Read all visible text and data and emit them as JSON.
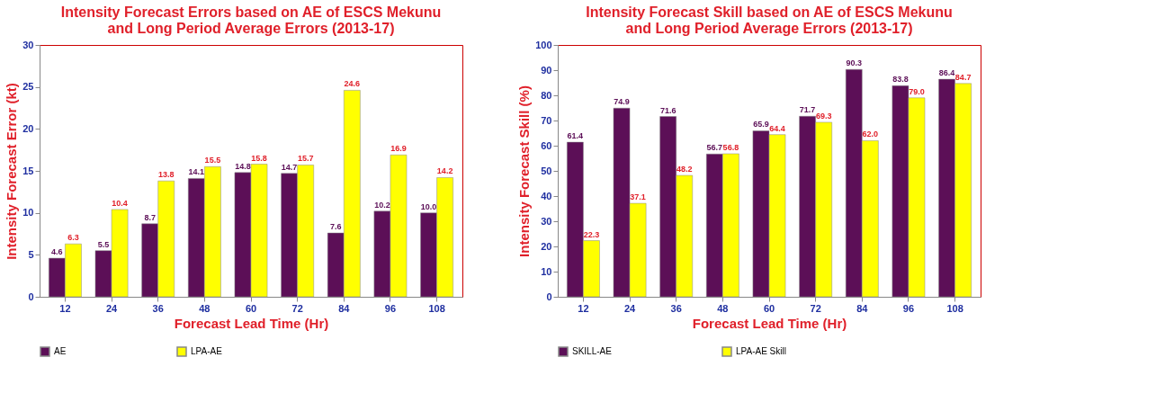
{
  "chart_data": [
    {
      "type": "bar",
      "title": [
        "Intensity Forecast Errors based on AE of  ESCS Mekunu",
        "and Long Period Average Errors (2013-17)"
      ],
      "xlabel": "Forecast Lead Time (Hr)",
      "ylabel": "Intensity Forecast Error  (kt)",
      "categories": [
        "12",
        "24",
        "36",
        "48",
        "60",
        "72",
        "84",
        "96",
        "108"
      ],
      "series": [
        {
          "name": "AE",
          "color": "#5c0f57",
          "values": [
            4.6,
            5.5,
            8.7,
            14.1,
            14.8,
            14.7,
            7.6,
            10.2,
            10.0
          ],
          "value_labels": [
            "4.6",
            "5.5",
            "8.7",
            "14.1",
            "14.8",
            "14.7",
            "7.6",
            "10.2",
            "10.0"
          ]
        },
        {
          "name": "LPA-AE",
          "color": "#ffff00",
          "values": [
            6.3,
            10.4,
            13.8,
            15.5,
            15.8,
            15.7,
            24.6,
            16.9,
            14.2
          ],
          "value_labels": [
            "6.3",
            "10.4",
            "13.8",
            "15.5",
            "15.8",
            "15.7",
            "24.6",
            "16.9",
            "14.2"
          ]
        }
      ],
      "ylim": [
        0,
        30
      ],
      "yticks": [
        0,
        5,
        10,
        15,
        20,
        25,
        30
      ],
      "grid": false,
      "legend": "bottom"
    },
    {
      "type": "bar",
      "title": [
        "Intensity Forecast  Skill based on AE of  ESCS Mekunu",
        "and Long Period Average Errors (2013-17)"
      ],
      "xlabel": "Forecast Lead Time (Hr)",
      "ylabel": "Intensity Forecast Skill  (%)",
      "categories": [
        "12",
        "24",
        "36",
        "48",
        "60",
        "72",
        "84",
        "96",
        "108"
      ],
      "series": [
        {
          "name": "SKILL-AE",
          "color": "#5c0f57",
          "values": [
            61.4,
            74.9,
            71.6,
            56.7,
            65.9,
            71.7,
            90.3,
            83.8,
            86.4
          ],
          "value_labels": [
            "61.4",
            "74.9",
            "71.6",
            "56.7",
            "65.9",
            "71.7",
            "90.3",
            "83.8",
            "86.4"
          ]
        },
        {
          "name": "LPA-AE Skill",
          "color": "#ffff00",
          "values": [
            22.3,
            37.1,
            48.2,
            56.8,
            64.4,
            69.3,
            62.0,
            79.0,
            84.7
          ],
          "value_labels": [
            "22.3",
            "37.1",
            "48.2",
            "56.8",
            "64.4",
            "69.3",
            "62.0",
            "79.0",
            "84.7"
          ]
        }
      ],
      "ylim": [
        0,
        100
      ],
      "yticks": [
        0,
        10,
        20,
        30,
        40,
        50,
        60,
        70,
        80,
        90,
        100
      ],
      "grid": false,
      "legend": "bottom"
    }
  ]
}
